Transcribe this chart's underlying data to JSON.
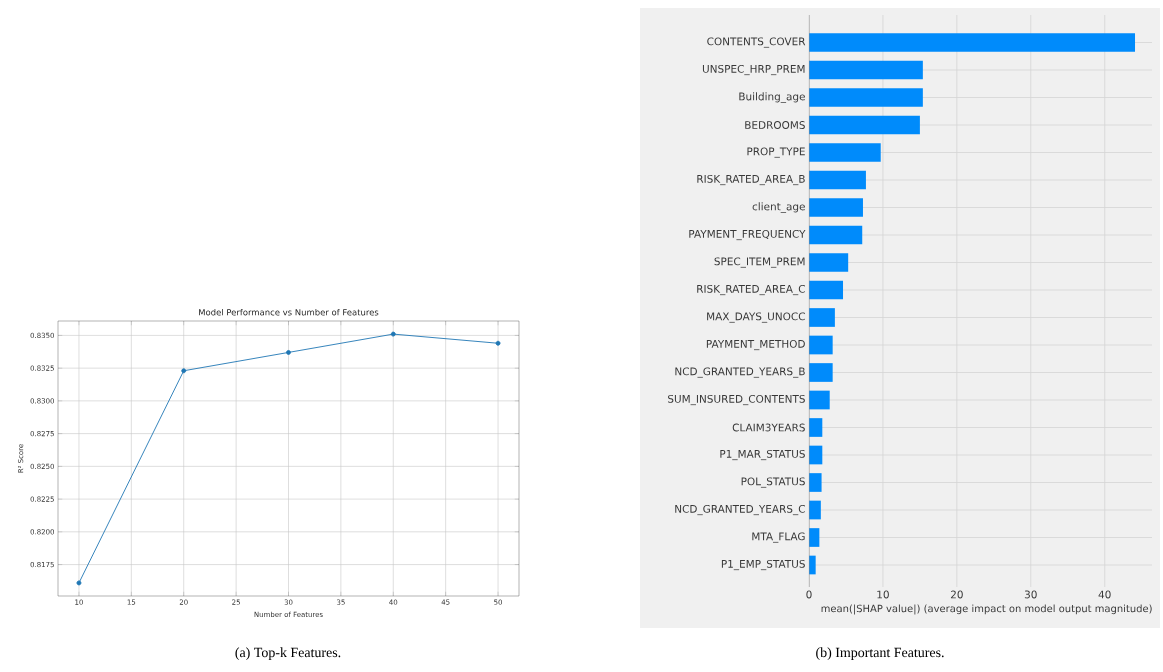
{
  "chart_data": [
    {
      "type": "line",
      "title": "Model Performance vs Number of Features",
      "xlabel": "Number of Features",
      "ylabel": "R² Score",
      "x": [
        10,
        20,
        30,
        40,
        50
      ],
      "values": [
        0.8161,
        0.8323,
        0.8337,
        0.8351,
        0.8344
      ],
      "color": "#1f77b4",
      "marker": "circle",
      "xlim": [
        8,
        52
      ],
      "ylim": [
        0.8151,
        0.8361
      ],
      "xticks": [
        10,
        15,
        20,
        25,
        30,
        35,
        40,
        45,
        50
      ],
      "yticks": [
        {
          "value": 0.8175,
          "label": "0.8175"
        },
        {
          "value": 0.82,
          "label": "0.8200"
        },
        {
          "value": 0.8225,
          "label": "0.8225"
        },
        {
          "value": 0.825,
          "label": "0.8250"
        },
        {
          "value": 0.8275,
          "label": "0.8275"
        },
        {
          "value": 0.83,
          "label": "0.8300"
        },
        {
          "value": 0.8325,
          "label": "0.8325"
        },
        {
          "value": 0.835,
          "label": "0.8350"
        }
      ],
      "grid": true,
      "annotations": [
        "(a) Top-k Features."
      ]
    },
    {
      "type": "bar",
      "orientation": "horizontal",
      "xlabel": "mean(|SHAP value|) (average impact on model output magnitude)",
      "categories": [
        "CONTENTS_COVER",
        "UNSPEC_HRP_PREM",
        "Building_age",
        "BEDROOMS",
        "PROP_TYPE",
        "RISK_RATED_AREA_B",
        "client_age",
        "PAYMENT_FREQUENCY",
        "SPEC_ITEM_PREM",
        "RISK_RATED_AREA_C",
        "MAX_DAYS_UNOCC",
        "PAYMENT_METHOD",
        "NCD_GRANTED_YEARS_B",
        "SUM_INSURED_CONTENTS",
        "CLAIM3YEARS",
        "P1_MAR_STATUS",
        "POL_STATUS",
        "NCD_GRANTED_YEARS_C",
        "MTA_FLAG",
        "P1_EMP_STATUS"
      ],
      "values": [
        44.1,
        15.4,
        15.4,
        15.0,
        9.7,
        7.7,
        7.3,
        7.2,
        5.3,
        4.6,
        3.5,
        3.2,
        3.2,
        2.8,
        1.8,
        1.8,
        1.7,
        1.6,
        1.4,
        0.9
      ],
      "color": "#008bfb",
      "xlim": [
        0,
        46.4
      ],
      "xticks": [
        0,
        10,
        20,
        30,
        40
      ],
      "grid": true,
      "annotations": [
        "(b) Important Features."
      ]
    }
  ]
}
